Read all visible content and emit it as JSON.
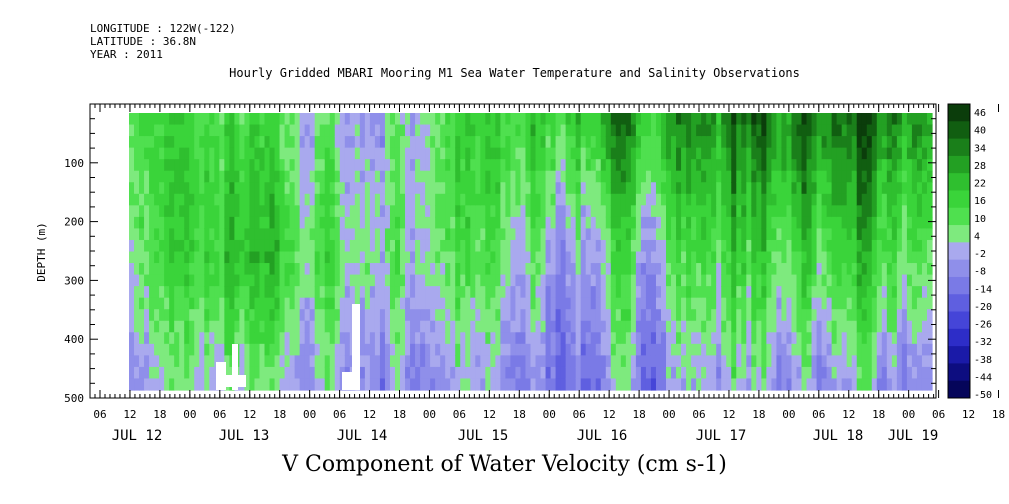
{
  "header": {
    "longitude": "LONGITUDE : 122W(-122)",
    "latitude": "LATITUDE : 36.8N",
    "year": "YEAR : 2011"
  },
  "chart_data": {
    "type": "heatmap",
    "title": "Hourly Gridded MBARI Mooring M1 Sea Water Temperature and Salinity Observations",
    "xlabel": "V Component of Water Velocity (cm s-1)",
    "ylabel": "DEPTH (m)",
    "ylim": [
      0,
      500
    ],
    "y_ticks": [
      100,
      200,
      300,
      400,
      500
    ],
    "y_inverted": true,
    "x_hour_ticks": [
      "06",
      "12",
      "18",
      "00",
      "06",
      "12",
      "18",
      "00",
      "06",
      "12",
      "18",
      "00",
      "06",
      "12",
      "18",
      "00",
      "06",
      "12",
      "18",
      "00",
      "06",
      "12",
      "18",
      "00",
      "06",
      "12",
      "18",
      "00",
      "06",
      "12",
      "18",
      "00"
    ],
    "x_date_labels": [
      "JUL 12",
      "JUL 13",
      "JUL 14",
      "JUL 15",
      "JUL 16",
      "JUL 17",
      "JUL 18",
      "JUL 19"
    ],
    "colorbar": {
      "levels": [
        46,
        40,
        34,
        28,
        22,
        16,
        10,
        4,
        -2,
        -8,
        -14,
        -20,
        -26,
        -32,
        -38,
        -44,
        -50
      ],
      "colors": [
        "#0b3d0b",
        "#115e11",
        "#1a7f1a",
        "#23a023",
        "#2fbf2f",
        "#3ad43a",
        "#4fe04f",
        "#7eea7e",
        "#a9a9ee",
        "#8f8fea",
        "#7a7ae6",
        "#5f5fe0",
        "#4545d8",
        "#2d2dc8",
        "#1a1aa8",
        "#0d0d80",
        "#05055a"
      ]
    },
    "depth_bins": [
      20,
      40,
      60,
      80,
      100,
      120,
      140,
      160,
      180,
      200,
      220,
      240,
      260,
      280,
      300,
      320,
      340,
      360,
      380,
      400,
      420,
      440,
      460,
      480
    ],
    "time_columns_hours": "hourly from JUL 12 11:00 to JUL 19 06:00",
    "velocity_pattern_by_day": [
      {
        "day": "JUL 12",
        "surface": 12,
        "mid": 6,
        "deep": -6
      },
      {
        "day": "JUL 13",
        "surface": 8,
        "mid": 16,
        "deep": -4
      },
      {
        "day": "JUL 14",
        "surface": -6,
        "mid": 2,
        "deep": -8
      },
      {
        "day": "JUL 15",
        "surface": 10,
        "mid": 4,
        "deep": -10
      },
      {
        "day": "JUL 16",
        "surface": 18,
        "mid": -6,
        "deep": -16
      },
      {
        "day": "JUL 17",
        "surface": 30,
        "mid": 10,
        "deep": -4
      },
      {
        "day": "JUL 18",
        "surface": 34,
        "mid": 12,
        "deep": -8
      },
      {
        "day": "JUL 19",
        "surface": 22,
        "mid": 4,
        "deep": -14
      }
    ]
  }
}
